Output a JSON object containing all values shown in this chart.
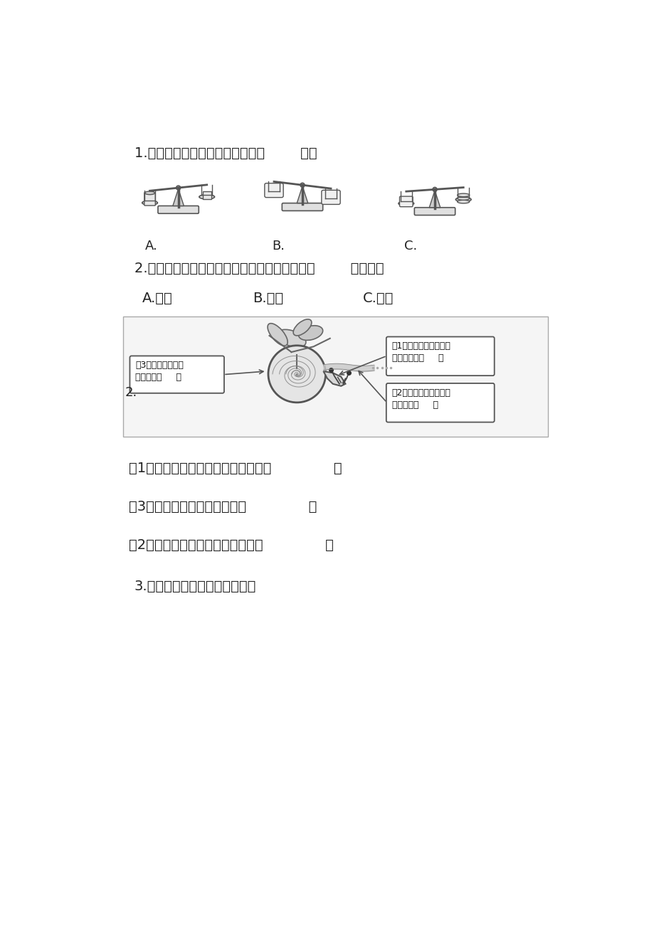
{
  "bg_color": "#ffffff",
  "text_color": "#222222",
  "line1": "1.比较它们轻重的最简便方法是（        ）。",
  "line2": "2.如果两个碗的轻重不同，说明物体的轻重与（        ）有关。",
  "opt_A": "A.大小",
  "opt_B": "B.材质",
  "opt_C": "C.形状",
  "snail_label": "2.",
  "box3_line1": "（3）我不能在玻璃",
  "box3_line2": "上爬行。（     ）",
  "box1_line1": "（1）我的眼睛长在短触",
  "box1_line2": "角的顶端。（     ）",
  "box2_line1": "（2）我爬过的地方会留",
  "box2_line2": "下黏液。（     ）",
  "snail_text1": "（1）我的眼睛长在短触角的顶端。（              ）",
  "snail_text3": "（3）我不能在玻璃上爬行。（              ）",
  "snail_text2": "（2）我爬过的地方会留下黏液。（              ）",
  "q3": "3.画出一种你观察到的小动物。"
}
